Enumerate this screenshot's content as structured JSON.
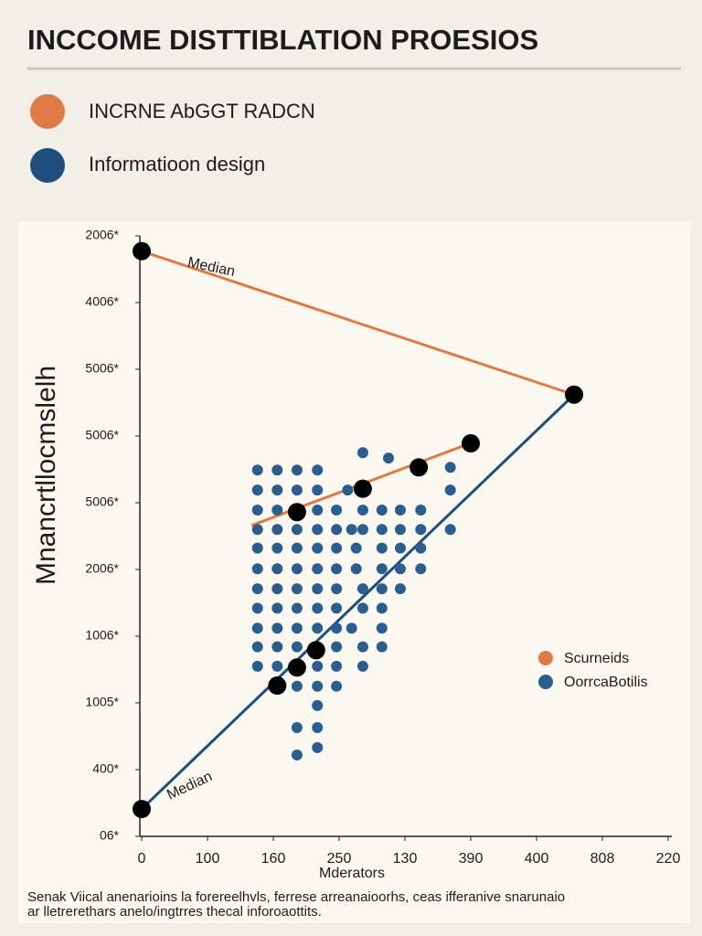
{
  "header": {
    "title": "INCCOME DISTTIBLATION PROESIOS",
    "items": [
      {
        "label": "INCRNE AbGGT RADCN",
        "color": "#e07a45"
      },
      {
        "label": "Informatioon design",
        "color": "#1f4e7d"
      }
    ]
  },
  "chart_data": {
    "type": "scatter",
    "ylabel": "Mnancrtllocmslelh",
    "xlabel": "Mderators",
    "xlim": [
      0,
      8
    ],
    "ylim": [
      0,
      9
    ],
    "xticks": [
      {
        "value": 0,
        "label": "0"
      },
      {
        "value": 1,
        "label": "100"
      },
      {
        "value": 2,
        "label": "160"
      },
      {
        "value": 3,
        "label": "250"
      },
      {
        "value": 4,
        "label": "130"
      },
      {
        "value": 5,
        "label": "390"
      },
      {
        "value": 6,
        "label": "400"
      },
      {
        "value": 7,
        "label": "808"
      },
      {
        "value": 8,
        "label": "220"
      }
    ],
    "yticks": [
      {
        "value": 0,
        "label": "06*"
      },
      {
        "value": 1,
        "label": "400*"
      },
      {
        "value": 2,
        "label": "1005*"
      },
      {
        "value": 3,
        "label": "1006*"
      },
      {
        "value": 4,
        "label": "2006*"
      },
      {
        "value": 5,
        "label": "5006*"
      },
      {
        "value": 6,
        "label": "5006*"
      },
      {
        "value": 7,
        "label": "5006*"
      },
      {
        "value": 8,
        "label": "4006*"
      },
      {
        "value": 9,
        "label": "2006*"
      }
    ],
    "legend": "right",
    "annotations": [
      {
        "text": "Median",
        "x": 0.7,
        "y": 8.6
      },
      {
        "text": "Median",
        "x": 0.4,
        "y": 0.6
      }
    ],
    "series": [
      {
        "name": "Scurneids",
        "color": "#e07a45",
        "mode": "line",
        "x": [
          0,
          6.57,
          null,
          1.67,
          4.99
        ],
        "values": [
          8.77,
          6.62,
          null,
          4.66,
          5.89
        ]
      },
      {
        "color": "#1f4e7d",
        "mode": "line",
        "x": [
          0,
          6.57
        ],
        "values": [
          0.41,
          6.62
        ]
      },
      {
        "name": "OorrcaBotilis",
        "color": "#2a5d90",
        "mode": "markers",
        "x": [
          1.76,
          2.06,
          2.36,
          2.67,
          3.36,
          3.75,
          4.69,
          1.76,
          2.06,
          2.36,
          2.67,
          3.13,
          4.69,
          1.76,
          2.06,
          2.67,
          2.96,
          3.36,
          3.65,
          3.93,
          4.24,
          1.76,
          2.06,
          2.36,
          2.67,
          2.96,
          3.19,
          3.36,
          3.65,
          3.93,
          4.24,
          4.69,
          1.76,
          2.06,
          2.36,
          2.67,
          2.96,
          3.26,
          3.65,
          3.93,
          4.24,
          1.76,
          2.06,
          2.36,
          2.67,
          2.96,
          3.26,
          3.65,
          3.93,
          4.24,
          1.76,
          2.06,
          2.36,
          2.67,
          2.96,
          3.36,
          3.65,
          3.93,
          1.76,
          2.06,
          2.36,
          2.67,
          2.96,
          3.36,
          3.65,
          1.76,
          2.06,
          2.36,
          2.67,
          2.96,
          3.19,
          3.65,
          1.76,
          2.06,
          2.36,
          2.96,
          3.36,
          3.65,
          1.76,
          2.06,
          2.67,
          2.96,
          3.36,
          2.36,
          2.67,
          2.96,
          2.67,
          2.36,
          2.67,
          2.67,
          2.36
        ],
        "values": [
          5.49,
          5.49,
          5.49,
          5.49,
          5.75,
          5.67,
          5.53,
          5.19,
          5.19,
          5.19,
          5.19,
          5.19,
          5.19,
          4.89,
          4.89,
          4.89,
          4.89,
          4.89,
          4.89,
          4.89,
          4.89,
          4.6,
          4.6,
          4.6,
          4.6,
          4.6,
          4.6,
          4.6,
          4.6,
          4.6,
          4.6,
          4.6,
          4.32,
          4.32,
          4.32,
          4.32,
          4.32,
          4.32,
          4.32,
          4.32,
          4.32,
          4.01,
          4.01,
          4.01,
          4.01,
          4.01,
          4.01,
          4.01,
          4.01,
          4.01,
          3.71,
          3.71,
          3.71,
          3.71,
          3.71,
          3.71,
          3.71,
          3.71,
          3.42,
          3.42,
          3.42,
          3.42,
          3.42,
          3.42,
          3.42,
          3.12,
          3.12,
          3.12,
          3.12,
          3.12,
          3.12,
          3.12,
          2.84,
          2.84,
          2.84,
          2.84,
          2.84,
          2.84,
          2.55,
          2.55,
          2.55,
          2.55,
          2.55,
          2.25,
          2.25,
          2.25,
          1.96,
          1.63,
          1.63,
          1.33,
          1.22
        ]
      },
      {
        "color": "#000000",
        "mode": "markers",
        "size": "large",
        "x": [
          0,
          6.57,
          5.0,
          4.21,
          3.36,
          2.36,
          2.65,
          2.36,
          2.06,
          0
        ],
        "values": [
          8.77,
          6.62,
          5.89,
          5.53,
          5.21,
          4.86,
          2.79,
          2.53,
          2.26,
          0.41
        ]
      }
    ]
  },
  "footer": {
    "lines": [
      "Senak Viical anenarioins la forereelhvls, ferrese arreanaioorhs, ceas ifferanive snarunaio",
      "ar lletrerethars anelo/ingtrres thecal inforoaottits."
    ]
  }
}
